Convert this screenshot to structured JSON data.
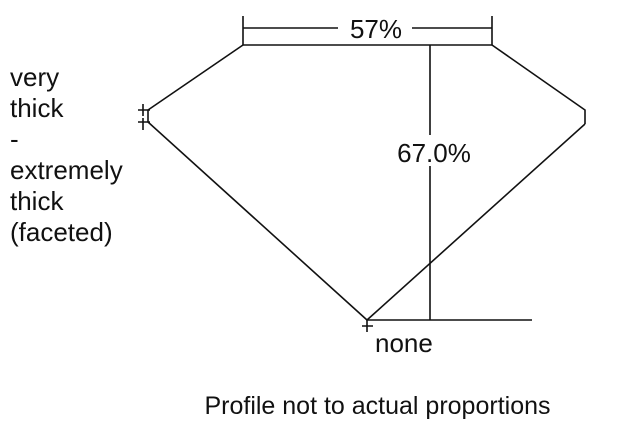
{
  "table_percent": "57%",
  "depth_percent": "67.0%",
  "culet": "none",
  "girdle_lines": [
    "very",
    "thick",
    "-",
    "extremely",
    "thick",
    "(faceted)"
  ],
  "footer": "Profile not to actual proportions"
}
